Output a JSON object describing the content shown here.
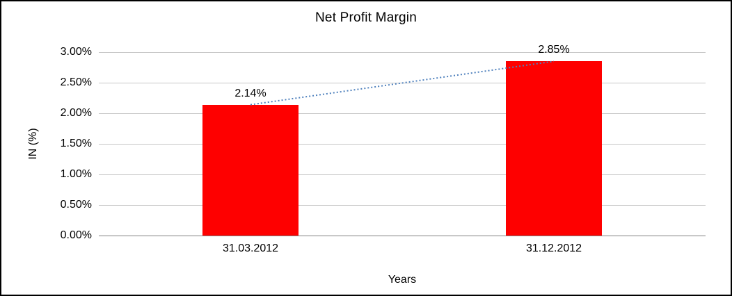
{
  "chart_data": {
    "type": "bar",
    "title": "Net Profit Margin",
    "categories": [
      "31.03.2012",
      "31.12.2012"
    ],
    "values": [
      2.14,
      2.85
    ],
    "data_labels": [
      "2.14%",
      "2.85%"
    ],
    "xlabel": "Years",
    "ylabel": "IN (%)",
    "ylim": [
      0,
      3
    ],
    "ytick_step": 0.5,
    "ytick_labels": [
      "0.00%",
      "0.50%",
      "1.00%",
      "1.50%",
      "2.00%",
      "2.50%",
      "3.00%"
    ],
    "bar_color": "#fe0000",
    "trendline_color": "#4f81bd",
    "gridline_color": "#c6c6c6",
    "grid": true,
    "trendline": true,
    "legend": "none"
  }
}
